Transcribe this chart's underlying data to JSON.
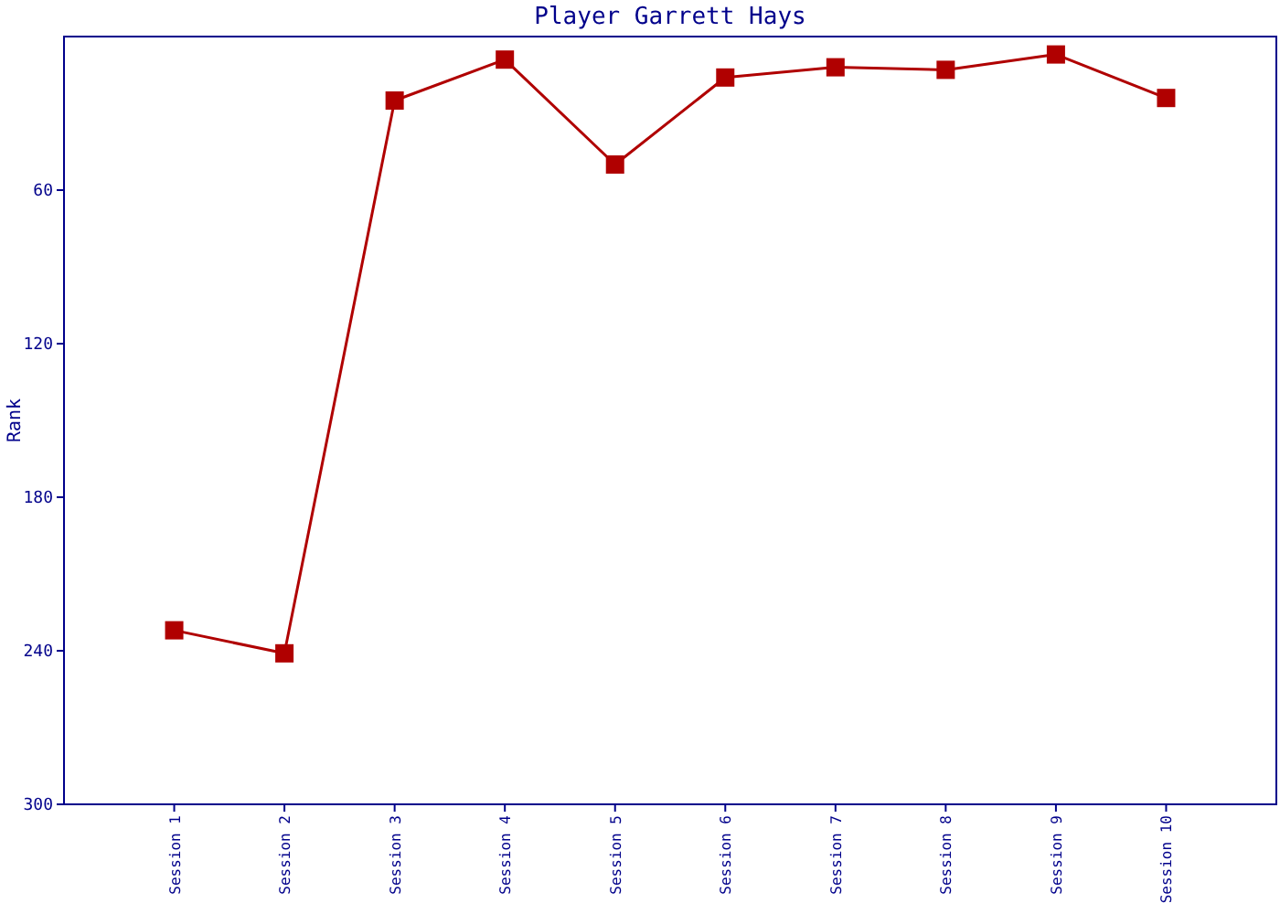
{
  "chart_data": {
    "type": "line",
    "title": "Player Garrett Hays",
    "ylabel": "Rank",
    "categories": [
      "Session 1",
      "Session 2",
      "Session 3",
      "Session 4",
      "Session 5",
      "Session 6",
      "Session 7",
      "Session 8",
      "Session 9",
      "Session 10"
    ],
    "series": [
      {
        "color": "#b00000",
        "values": [
          232,
          241,
          25,
          9,
          50,
          16,
          12,
          13,
          7,
          24
        ]
      }
    ],
    "ylim": [
      300,
      0
    ],
    "yticks": [
      60,
      120,
      180,
      240,
      300
    ],
    "grid": false,
    "marker": "square",
    "line_style": "solid"
  }
}
